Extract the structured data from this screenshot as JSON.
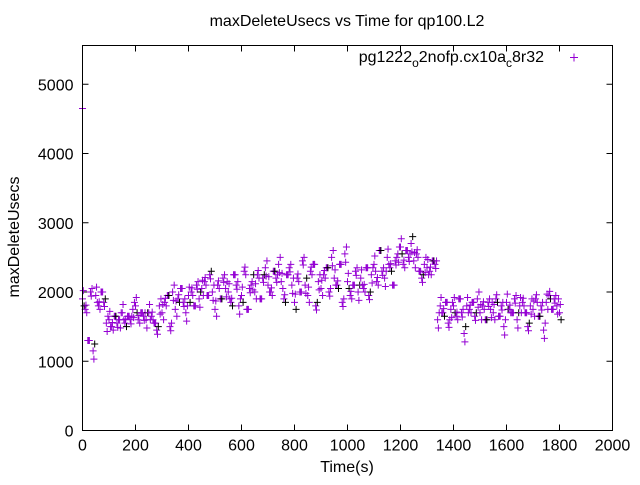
{
  "chart_data": {
    "type": "scatter",
    "title": "maxDeleteUsecs vs Time for qp100.L2",
    "xlabel": "Time(s)",
    "ylabel": "maxDeleteUsecs",
    "xlim": [
      0,
      2000
    ],
    "ylim": [
      0,
      5560
    ],
    "xticks": [
      "0",
      "200",
      "400",
      "600",
      "800",
      "1000",
      "1200",
      "1400",
      "1600",
      "1800",
      "2000"
    ],
    "yticks": [
      "0",
      "1000",
      "2000",
      "3000",
      "4000",
      "5000"
    ],
    "grid": false,
    "legend_position": "top-right",
    "series": [
      {
        "name": "pg1222",
        "name_sub1": "o",
        "name_mid": "2nofp.cx10a",
        "name_sub2": "c",
        "name_end": "8r32",
        "color": "#9400d3",
        "marker": "+",
        "x_start": 0,
        "x_step": 10,
        "values": [
          1900,
          1750,
          1300,
          2000,
          1150,
          1950,
          1800,
          2000,
          1850,
          1550,
          1600,
          1500,
          1650,
          1550,
          1600,
          1700,
          1550,
          1650,
          1600,
          1750,
          1800,
          1600,
          1700,
          1650,
          1600,
          1700,
          1650,
          1550,
          1450,
          1800,
          1700,
          1850,
          1950,
          1500,
          2000,
          1750,
          1900,
          2050,
          1850,
          1700,
          1950,
          2000,
          1800,
          2100,
          1900,
          2050,
          2150,
          1950,
          2250,
          2000,
          1750,
          2100,
          1900,
          2200,
          2050,
          2000,
          1850,
          2250,
          2100,
          1800,
          1950,
          2300,
          1750,
          2050,
          2150,
          2000,
          2250,
          1900,
          2200,
          2350,
          2100,
          2000,
          2300,
          2200,
          2400,
          2150,
          1900,
          2250,
          2350,
          2100,
          1850,
          2200,
          2000,
          2450,
          2100,
          1950,
          2300,
          2400,
          1800,
          2150,
          2050,
          2250,
          2350,
          2000,
          2500,
          2200,
          2100,
          2400,
          1850,
          2550,
          2150,
          1950,
          2100,
          2300,
          2000,
          2200,
          2050,
          2350,
          1950,
          2250,
          2400,
          2150,
          2600,
          2300,
          2200,
          2500,
          2350,
          2100,
          2450,
          2550,
          2650,
          2400,
          2600,
          2500,
          2700,
          2450,
          2550,
          2300,
          2200,
          2400,
          2350,
          2300,
          2450,
          2400,
          1600,
          1800,
          1700,
          1850,
          1550,
          1750,
          1800,
          1650,
          1900,
          1700,
          1400,
          1800,
          1750,
          1850,
          1650,
          1900,
          1700,
          1800,
          1600,
          1850,
          1750,
          1700,
          1900,
          1650,
          1800,
          1500,
          1850,
          1750,
          1700,
          1900,
          1600,
          1800,
          1850,
          1700,
          1500,
          1800,
          1750,
          1900,
          1650,
          1800,
          1450,
          1850,
          1950,
          1750,
          1900,
          1800,
          1700
        ]
      }
    ],
    "extra_points": [
      {
        "x": 0,
        "y": 4650
      }
    ]
  }
}
